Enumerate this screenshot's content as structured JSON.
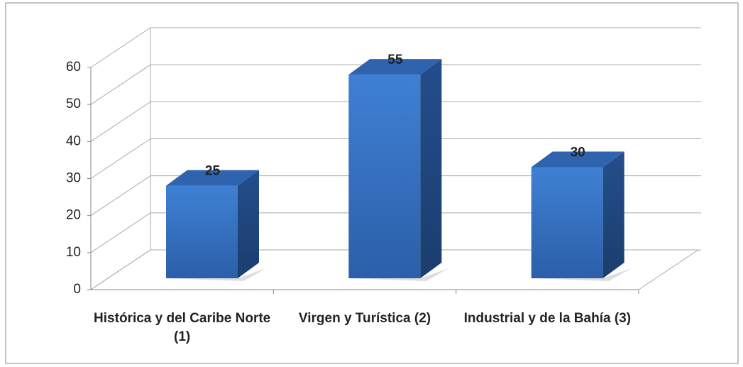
{
  "chart_data": {
    "type": "bar3d",
    "categories": [
      "Histórica y del Caribe Norte (1)",
      "Virgen y Turística (2)",
      "Industrial y de la Bahía (3)"
    ],
    "values": [
      25,
      55,
      30
    ],
    "color": "#3a75c4",
    "ylim": [
      0,
      60
    ],
    "yticks": [
      0,
      10,
      20,
      30,
      40,
      50,
      60
    ],
    "grid": true
  }
}
